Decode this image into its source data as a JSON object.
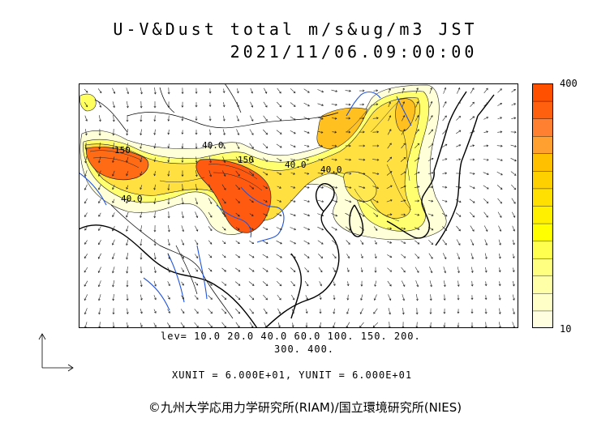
{
  "header": {
    "title_line1": "U-V&Dust total m/s&ug/m3 JST",
    "title_line2": "2021/11/06.09:00:00"
  },
  "legend": {
    "max_label": "400",
    "min_label": "10",
    "colors": [
      "#ffffe0",
      "#ffffc8",
      "#ffffa8",
      "#ffff80",
      "#ffff50",
      "#ffff00",
      "#fff000",
      "#ffe000",
      "#ffd000",
      "#ffc000",
      "#ffa030",
      "#ff8030",
      "#ff6010",
      "#ff5000"
    ]
  },
  "levels": {
    "line1": "lev= 10.0 20.0 40.0 60.0 100. 150. 200.",
    "line2": "300. 400."
  },
  "units": {
    "text": "XUNIT = 6.000E+01, YUNIT = 6.000E+01"
  },
  "map": {
    "contour_labels": [
      "150",
      "40.0",
      "150",
      "40.0",
      "40.0",
      "40.0"
    ]
  },
  "footer": {
    "credit": "©九州大学応用力学研究所(RIAM)/国立環境研究所(NIES)"
  }
}
